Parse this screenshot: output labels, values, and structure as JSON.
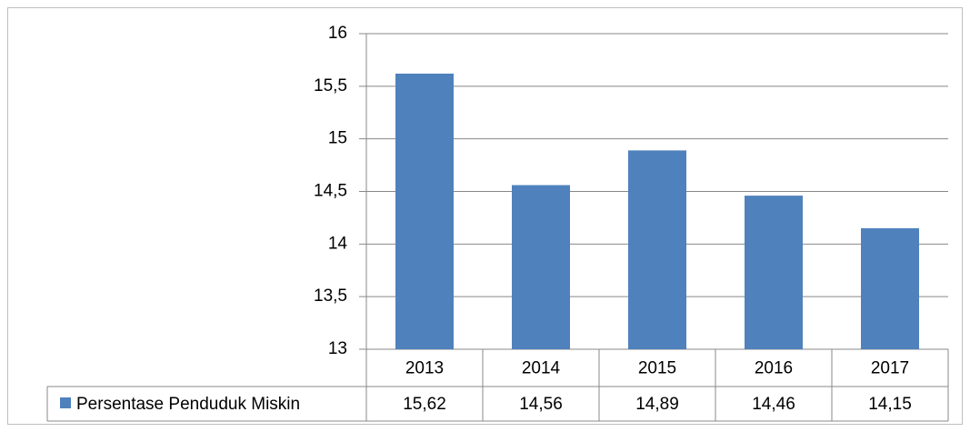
{
  "chart_data": {
    "type": "bar",
    "categories": [
      "2013",
      "2014",
      "2015",
      "2016",
      "2017"
    ],
    "series": [
      {
        "name": "Persentase Penduduk Miskin",
        "color": "#4f81bd",
        "values": [
          15.62,
          14.56,
          14.89,
          14.46,
          14.15
        ],
        "value_labels": [
          "15,62",
          "14,56",
          "14,89",
          "14,46",
          "14,15"
        ]
      }
    ],
    "ylim": [
      13,
      16
    ],
    "yticks": [
      13,
      {
        "value": 13.5,
        "label": "13,5"
      },
      14,
      {
        "value": 14.5,
        "label": "14,5"
      },
      15,
      {
        "value": 15.5,
        "label": "15,5"
      },
      16
    ],
    "grid": true
  }
}
